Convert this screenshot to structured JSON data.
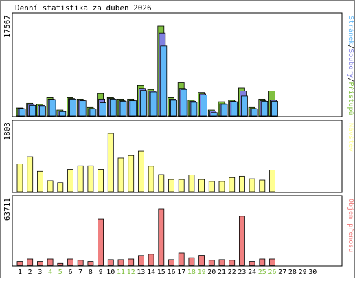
{
  "chart_data": {
    "type": "bar",
    "title": "Denní statistika za duben 2026",
    "categories": [
      "1",
      "2",
      "3",
      "4",
      "5",
      "6",
      "7",
      "8",
      "9",
      "10",
      "11",
      "12",
      "13",
      "14",
      "15",
      "16",
      "17",
      "18",
      "19",
      "20",
      "21",
      "22",
      "23",
      "24",
      "25",
      "26",
      "27",
      "28",
      "29",
      "30"
    ],
    "weekend_days": [
      "4",
      "5",
      "11",
      "12",
      "18",
      "19",
      "25",
      "26"
    ],
    "panels": [
      {
        "name": "traffic",
        "ymax_label": "17567",
        "ymax": 17567,
        "legend": [
          "Stránek",
          "Soubory",
          "Přístupů"
        ],
        "series": [
          {
            "name": "Přístupů",
            "color": "#80c040",
            "values": [
              1600,
              2500,
              2300,
              3700,
              1200,
              3700,
              3300,
              1700,
              4400,
              3700,
              3300,
              3300,
              6000,
              5200,
              17567,
              3700,
              6500,
              3100,
              4600,
              1200,
              2800,
              3100,
              5500,
              1700,
              3300,
              4900,
              0,
              0,
              0,
              0
            ]
          },
          {
            "name": "Soubory",
            "color": "#8080e0",
            "values": [
              1500,
              2300,
              2100,
              3300,
              1000,
              3400,
              3100,
              1500,
              3300,
              3400,
              3000,
              3000,
              5400,
              4900,
              16200,
              3300,
              5400,
              2900,
              4300,
              1000,
              2400,
              2900,
              4900,
              1500,
              3000,
              3100,
              0,
              0,
              0,
              0
            ]
          },
          {
            "name": "Stránek",
            "color": "#60b8f8",
            "values": [
              1400,
              2100,
              1900,
              3200,
              900,
              3300,
              3000,
              1400,
              2600,
              3300,
              2900,
              3000,
              5000,
              4700,
              13700,
              3100,
              5200,
              2700,
              4100,
              700,
              2300,
              2800,
              3900,
              1400,
              2900,
              2900,
              0,
              0,
              0,
              0
            ]
          }
        ]
      },
      {
        "name": "visits",
        "ymax_label": "1803",
        "ymax": 1803,
        "legend": [
          "Návštěv"
        ],
        "series": [
          {
            "name": "Návštěv",
            "color": "#ffff90",
            "values": [
              860,
              1080,
              630,
              340,
              280,
              690,
              800,
              800,
              690,
              1803,
              1040,
              1120,
              1250,
              790,
              530,
              380,
              380,
              520,
              380,
              320,
              320,
              440,
              480,
              400,
              360,
              670,
              0,
              0,
              0,
              0
            ]
          }
        ]
      },
      {
        "name": "volume",
        "ymax_label": "63711",
        "ymax": 63711,
        "legend": [
          "Objem přenosu"
        ],
        "series": [
          {
            "name": "Objem přenosu",
            "color": "#f08080",
            "values": [
              4200,
              7000,
              4200,
              7000,
              2100,
              7000,
              5600,
              4200,
              52000,
              6300,
              6300,
              7000,
              11000,
              12600,
              63711,
              6300,
              14000,
              8400,
              11200,
              5600,
              6300,
              5600,
              55300,
              4200,
              7000,
              7000,
              0,
              0,
              0,
              0
            ]
          }
        ]
      }
    ],
    "colors": {
      "panel_bg": "#ffffff",
      "frame": "#000000",
      "weekday_label": "#000000",
      "weekend_label": "#80c040"
    }
  }
}
